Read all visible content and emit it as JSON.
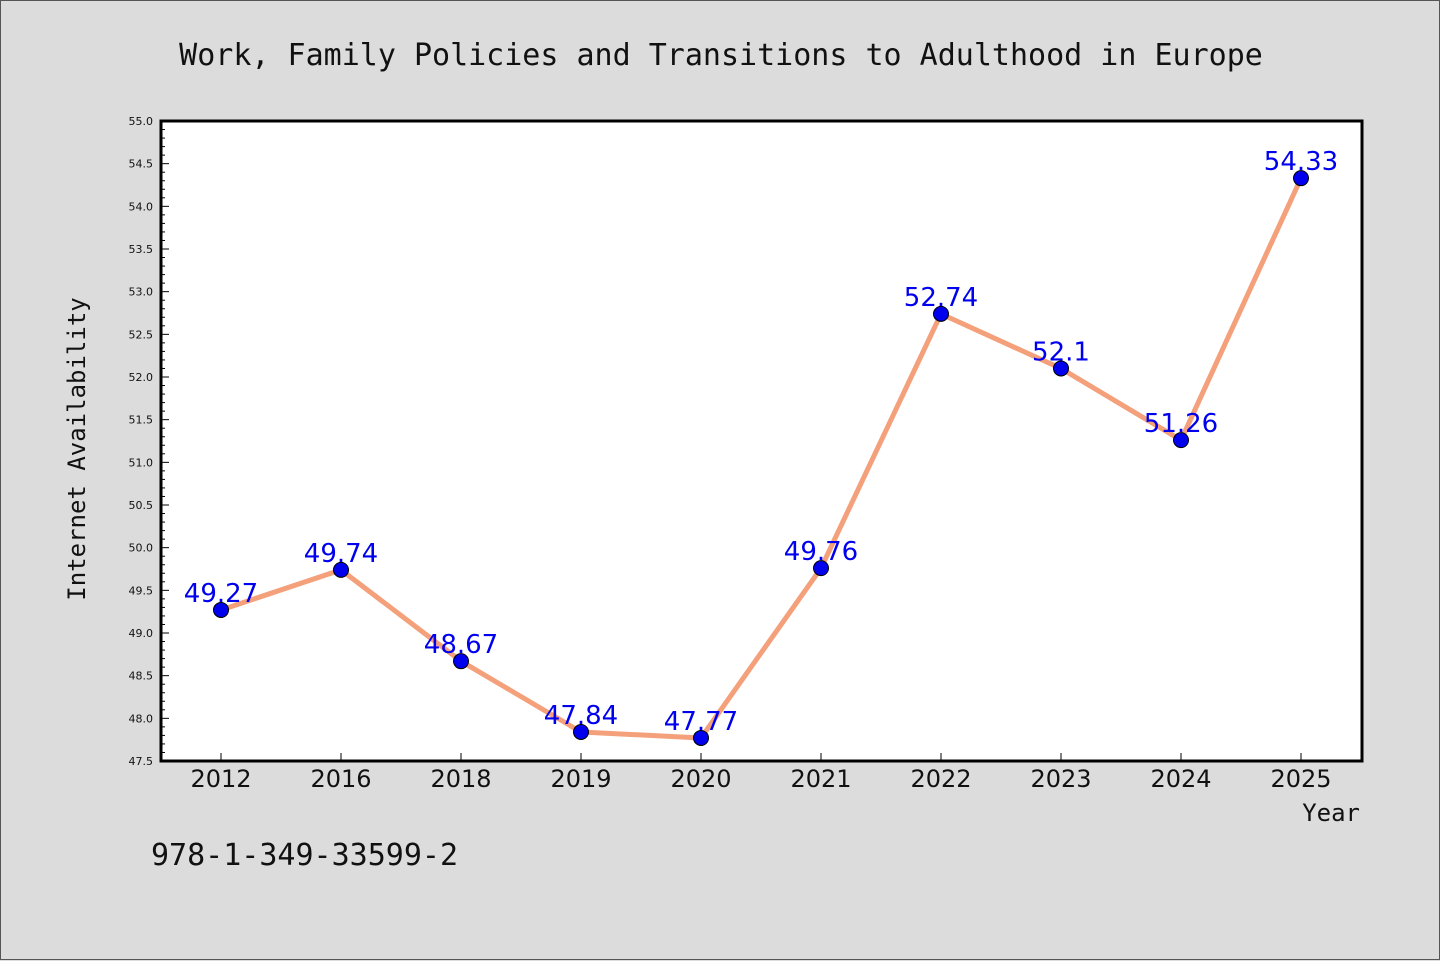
{
  "footer_text": "978-1-349-33599-2",
  "colors": {
    "background": "#dcdcdc",
    "plot_background": "#ffffff",
    "line": "#f4a07a",
    "marker": "#0000ee",
    "data_label": "#0000ee"
  },
  "chart_data": {
    "type": "line",
    "title": "Work, Family Policies and Transitions to Adulthood in Europe",
    "xlabel": "Year",
    "ylabel": "Internet Availability",
    "categories": [
      "2012",
      "2016",
      "2018",
      "2019",
      "2020",
      "2021",
      "2022",
      "2023",
      "2024",
      "2025"
    ],
    "series": [
      {
        "values": [
          49.27,
          49.74,
          48.67,
          47.84,
          47.77,
          49.76,
          52.74,
          52.1,
          51.26,
          54.33
        ],
        "labels": [
          "49.27",
          "49.74",
          "48.67",
          "47.84",
          "47.77",
          "49.76",
          "52.74",
          "52.1",
          "51.26",
          "54.33"
        ]
      }
    ],
    "ylim": [
      47.5,
      55.0
    ],
    "yticks": [
      "47.5",
      "48.0",
      "48.5",
      "49.0",
      "49.5",
      "50.0",
      "50.5",
      "51.0",
      "51.5",
      "52.0",
      "52.5",
      "53.0",
      "53.5",
      "54.0",
      "54.5",
      "55.0"
    ],
    "grid": false,
    "legend": "none"
  }
}
